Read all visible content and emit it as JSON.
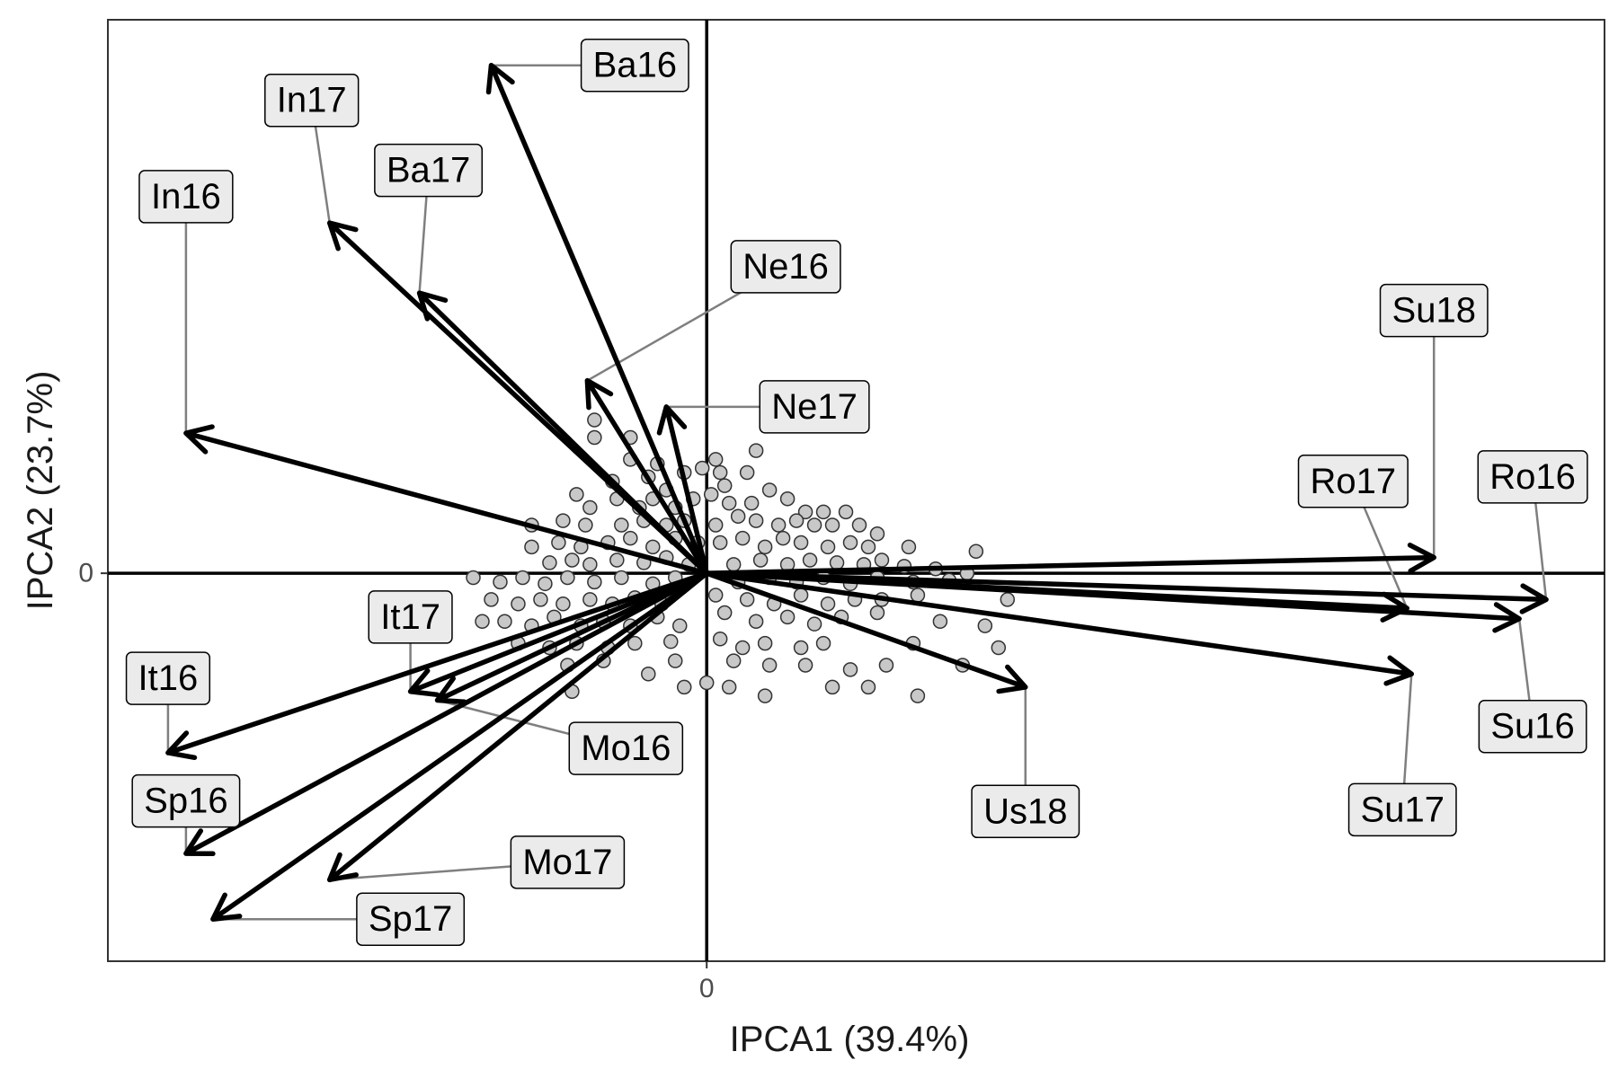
{
  "chart_data": {
    "type": "scatter",
    "subtype": "biplot",
    "title": "",
    "xlabel": "IPCA1 (39.4%)",
    "ylabel": "IPCA2 (23.7%)",
    "x_ticks": [
      {
        "value": 0,
        "label": "0"
      }
    ],
    "y_ticks": [
      {
        "value": 0,
        "label": "0"
      }
    ],
    "xlim": [
      -6.67,
      10
    ],
    "ylim": [
      -4.43,
      6.32
    ],
    "zero_lines": true,
    "grid": false,
    "legend": "none",
    "colors": {
      "vector": "#000000",
      "label_fill": "#ebebeb",
      "point_fill": "#c8c8c8",
      "leader": "#7f7f7f"
    },
    "environments": [
      {
        "name": "In17",
        "x": -4.2,
        "y": 4.0,
        "label_x": -4.4,
        "label_y": 5.4
      },
      {
        "name": "Ba16",
        "x": -2.4,
        "y": 5.8,
        "label_x": -0.8,
        "label_y": 5.8
      },
      {
        "name": "In16",
        "x": -5.8,
        "y": 1.6,
        "label_x": -5.8,
        "label_y": 4.3
      },
      {
        "name": "Ba17",
        "x": -3.2,
        "y": 3.2,
        "label_x": -3.1,
        "label_y": 4.6
      },
      {
        "name": "Ne16",
        "x": -1.33,
        "y": 2.2,
        "label_x": 0.88,
        "label_y": 3.5
      },
      {
        "name": "Ne17",
        "x": -0.45,
        "y": 1.9,
        "label_x": 1.2,
        "label_y": 1.9
      },
      {
        "name": "It17",
        "x": -3.3,
        "y": -1.35,
        "label_x": -3.3,
        "label_y": -0.5
      },
      {
        "name": "It16",
        "x": -6.0,
        "y": -2.05,
        "label_x": -6.0,
        "label_y": -1.2
      },
      {
        "name": "Mo16",
        "x": -3.0,
        "y": -1.45,
        "label_x": -0.9,
        "label_y": -2.0
      },
      {
        "name": "Sp16",
        "x": -5.8,
        "y": -3.2,
        "label_x": -5.8,
        "label_y": -2.6
      },
      {
        "name": "Mo17",
        "x": -4.2,
        "y": -3.5,
        "label_x": -1.55,
        "label_y": -3.3
      },
      {
        "name": "Sp17",
        "x": -5.5,
        "y": -3.95,
        "label_x": -3.3,
        "label_y": -3.95
      },
      {
        "name": "Us18",
        "x": 3.55,
        "y": -1.3,
        "label_x": 3.55,
        "label_y": -2.72
      },
      {
        "name": "Su18",
        "x": 8.1,
        "y": 0.18,
        "label_x": 8.1,
        "label_y": 3.0
      },
      {
        "name": "Ro17",
        "x": 7.8,
        "y": -0.4,
        "label_x": 7.2,
        "label_y": 1.05
      },
      {
        "name": "Ro16",
        "x": 9.35,
        "y": -0.3,
        "label_x": 9.2,
        "label_y": 1.1
      },
      {
        "name": "Su16",
        "x": 9.05,
        "y": -0.52,
        "label_x": 9.2,
        "label_y": -1.75
      },
      {
        "name": "Su17",
        "x": 7.85,
        "y": -1.15,
        "label_x": 7.75,
        "label_y": -2.7
      }
    ],
    "genotypes": [
      [
        -1.25,
        1.55
      ],
      [
        -1.05,
        1.05
      ],
      [
        -0.85,
        1.3
      ],
      [
        -0.65,
        1.1
      ],
      [
        -0.45,
        0.95
      ],
      [
        -0.25,
        1.15
      ],
      [
        -0.05,
        1.2
      ],
      [
        0.15,
        1.15
      ],
      [
        0.45,
        1.15
      ],
      [
        0.55,
        1.4
      ],
      [
        -1.3,
        0.75
      ],
      [
        -1.0,
        0.85
      ],
      [
        -0.75,
        0.75
      ],
      [
        -0.6,
        0.85
      ],
      [
        -0.35,
        0.75
      ],
      [
        -0.15,
        0.85
      ],
      [
        0.05,
        0.9
      ],
      [
        0.25,
        0.8
      ],
      [
        0.5,
        0.8
      ],
      [
        0.7,
        0.95
      ],
      [
        0.9,
        0.85
      ],
      [
        1.1,
        0.7
      ],
      [
        1.3,
        0.7
      ],
      [
        1.55,
        0.7
      ],
      [
        -1.95,
        0.55
      ],
      [
        -1.6,
        0.6
      ],
      [
        -1.35,
        0.55
      ],
      [
        -0.95,
        0.55
      ],
      [
        -0.7,
        0.6
      ],
      [
        -0.45,
        0.55
      ],
      [
        -0.25,
        0.6
      ],
      [
        0.1,
        0.55
      ],
      [
        0.35,
        0.65
      ],
      [
        0.55,
        0.6
      ],
      [
        0.8,
        0.55
      ],
      [
        1.0,
        0.6
      ],
      [
        1.2,
        0.55
      ],
      [
        1.4,
        0.55
      ],
      [
        1.7,
        0.55
      ],
      [
        1.9,
        0.45
      ],
      [
        -1.95,
        0.3
      ],
      [
        -1.65,
        0.35
      ],
      [
        -1.4,
        0.3
      ],
      [
        -1.1,
        0.35
      ],
      [
        -0.85,
        0.4
      ],
      [
        -0.6,
        0.3
      ],
      [
        -0.35,
        0.4
      ],
      [
        -0.1,
        0.35
      ],
      [
        0.15,
        0.35
      ],
      [
        0.4,
        0.4
      ],
      [
        0.65,
        0.3
      ],
      [
        0.85,
        0.4
      ],
      [
        1.05,
        0.35
      ],
      [
        1.35,
        0.3
      ],
      [
        1.6,
        0.35
      ],
      [
        1.8,
        0.3
      ],
      [
        2.25,
        0.3
      ],
      [
        3.0,
        0.25
      ],
      [
        -1.75,
        0.12
      ],
      [
        -1.5,
        0.15
      ],
      [
        -1.3,
        0.1
      ],
      [
        -1.0,
        0.15
      ],
      [
        -0.7,
        0.12
      ],
      [
        -0.45,
        0.18
      ],
      [
        -0.2,
        0.1
      ],
      [
        0.3,
        0.1
      ],
      [
        0.6,
        0.15
      ],
      [
        0.9,
        0.1
      ],
      [
        1.15,
        0.15
      ],
      [
        1.45,
        0.12
      ],
      [
        1.75,
        0.1
      ],
      [
        1.95,
        0.15
      ],
      [
        2.2,
        0.08
      ],
      [
        2.55,
        0.05
      ],
      [
        2.9,
        0.0
      ],
      [
        -2.6,
        -0.05
      ],
      [
        -2.3,
        -0.1
      ],
      [
        -2.05,
        -0.05
      ],
      [
        -1.8,
        -0.12
      ],
      [
        -1.55,
        -0.05
      ],
      [
        -1.25,
        -0.1
      ],
      [
        -0.95,
        -0.05
      ],
      [
        -0.6,
        -0.12
      ],
      [
        -0.35,
        -0.05
      ],
      [
        0.35,
        -0.1
      ],
      [
        0.7,
        -0.05
      ],
      [
        1.0,
        -0.1
      ],
      [
        1.3,
        -0.05
      ],
      [
        1.6,
        -0.12
      ],
      [
        1.9,
        -0.05
      ],
      [
        2.3,
        -0.1
      ],
      [
        2.7,
        -0.08
      ],
      [
        -2.4,
        -0.3
      ],
      [
        -2.1,
        -0.35
      ],
      [
        -1.85,
        -0.3
      ],
      [
        -1.6,
        -0.35
      ],
      [
        -1.3,
        -0.3
      ],
      [
        -1.05,
        -0.35
      ],
      [
        -0.8,
        -0.28
      ],
      [
        -0.5,
        -0.35
      ],
      [
        0.1,
        -0.25
      ],
      [
        0.45,
        -0.3
      ],
      [
        0.75,
        -0.35
      ],
      [
        1.05,
        -0.25
      ],
      [
        1.35,
        -0.35
      ],
      [
        1.65,
        -0.3
      ],
      [
        1.95,
        -0.3
      ],
      [
        2.35,
        -0.25
      ],
      [
        3.35,
        -0.3
      ],
      [
        -2.5,
        -0.55
      ],
      [
        -2.25,
        -0.55
      ],
      [
        -1.95,
        -0.6
      ],
      [
        -1.7,
        -0.5
      ],
      [
        -1.4,
        -0.6
      ],
      [
        -1.15,
        -0.55
      ],
      [
        -0.85,
        -0.6
      ],
      [
        -0.55,
        -0.5
      ],
      [
        -0.3,
        -0.6
      ],
      [
        0.2,
        -0.45
      ],
      [
        0.55,
        -0.55
      ],
      [
        0.9,
        -0.5
      ],
      [
        1.2,
        -0.58
      ],
      [
        1.5,
        -0.5
      ],
      [
        1.9,
        -0.45
      ],
      [
        2.6,
        -0.55
      ],
      [
        3.1,
        -0.6
      ],
      [
        -2.1,
        -0.8
      ],
      [
        -1.75,
        -0.85
      ],
      [
        -1.45,
        -0.8
      ],
      [
        -1.1,
        -0.85
      ],
      [
        -0.8,
        -0.8
      ],
      [
        -0.4,
        -0.78
      ],
      [
        0.15,
        -0.75
      ],
      [
        0.4,
        -0.85
      ],
      [
        0.65,
        -0.8
      ],
      [
        1.05,
        -0.85
      ],
      [
        1.3,
        -0.8
      ],
      [
        2.3,
        -0.8
      ],
      [
        3.25,
        -0.85
      ],
      [
        -1.55,
        -1.05
      ],
      [
        -1.15,
        -1.0
      ],
      [
        -0.65,
        -1.15
      ],
      [
        -0.35,
        -1.0
      ],
      [
        0.3,
        -1.0
      ],
      [
        0.7,
        -1.05
      ],
      [
        1.1,
        -1.05
      ],
      [
        1.6,
        -1.1
      ],
      [
        2.0,
        -1.05
      ],
      [
        2.85,
        -1.05
      ],
      [
        -1.5,
        -1.35
      ],
      [
        -0.25,
        -1.3
      ],
      [
        0.0,
        -1.25
      ],
      [
        0.25,
        -1.3
      ],
      [
        0.65,
        -1.4
      ],
      [
        1.4,
        -1.3
      ],
      [
        1.8,
        -1.3
      ],
      [
        2.35,
        -1.4
      ],
      [
        -1.25,
        1.75
      ],
      [
        -0.85,
        1.55
      ],
      [
        -0.55,
        1.25
      ],
      [
        0.1,
        1.3
      ],
      [
        -1.45,
        0.9
      ],
      [
        0.2,
        1.0
      ]
    ]
  }
}
